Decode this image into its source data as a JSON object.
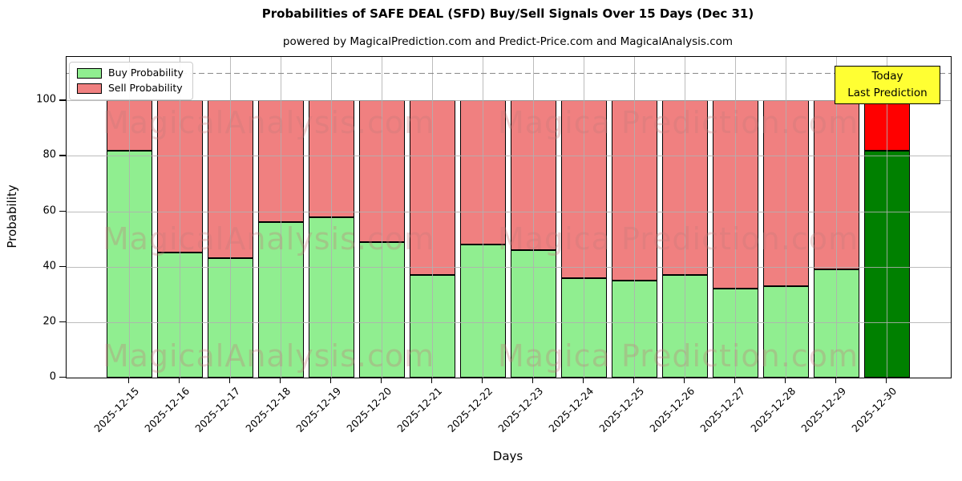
{
  "title": "Probabilities of SAFE DEAL (SFD) Buy/Sell Signals Over 15 Days (Dec 31)",
  "subtitle": "powered by MagicalPrediction.com and Predict-Price.com and MagicalAnalysis.com",
  "axis": {
    "ylabel": "Probability",
    "xlabel": "Days",
    "yticks": [
      0,
      20,
      40,
      60,
      80,
      100
    ]
  },
  "legend": {
    "items": [
      {
        "label": "Buy Probability",
        "color": "#90EE90"
      },
      {
        "label": "Sell Probability",
        "color": "#F08080"
      }
    ]
  },
  "annotation": {
    "line1": "Today",
    "line2": "Last Prediction",
    "bg_color": "#ffff33"
  },
  "watermarks": {
    "left": "MagicalAnalysis.com",
    "right": "Magica Prediction.com"
  },
  "colors": {
    "buy": "#90EE90",
    "sell": "#F08080",
    "today_buy": "#008000",
    "today_sell": "#FF0000",
    "bar_edge": "#000000",
    "grid": "#b0b0b0",
    "dashed_line": "#8a8a8a",
    "annotation_bg": "#ffff33"
  },
  "chart_data": {
    "type": "bar",
    "stacked": true,
    "title": "Probabilities of SAFE DEAL (SFD) Buy/Sell Signals Over 15 Days (Dec 31)",
    "xlabel": "Days",
    "ylabel": "Probability",
    "ylim": [
      0,
      115.7
    ],
    "grid": true,
    "legend_position": "upper left",
    "hline": {
      "y": 110,
      "style": "dashed"
    },
    "categories": [
      "2025-12-15",
      "2025-12-16",
      "2025-12-17",
      "2025-12-18",
      "2025-12-19",
      "2025-12-20",
      "2025-12-21",
      "2025-12-22",
      "2025-12-23",
      "2025-12-24",
      "2025-12-25",
      "2025-12-26",
      "2025-12-27",
      "2025-12-28",
      "2025-12-29",
      "2025-12-30"
    ],
    "series": [
      {
        "name": "Buy Probability",
        "values": [
          82,
          45,
          43,
          56,
          58,
          49,
          37,
          48,
          46,
          36,
          35,
          37,
          32,
          33,
          39,
          82
        ]
      },
      {
        "name": "Sell Probability",
        "values": [
          18,
          55,
          57,
          44,
          42,
          51,
          63,
          52,
          54,
          64,
          65,
          63,
          68,
          67,
          61,
          18
        ]
      }
    ],
    "today_index": 15
  }
}
